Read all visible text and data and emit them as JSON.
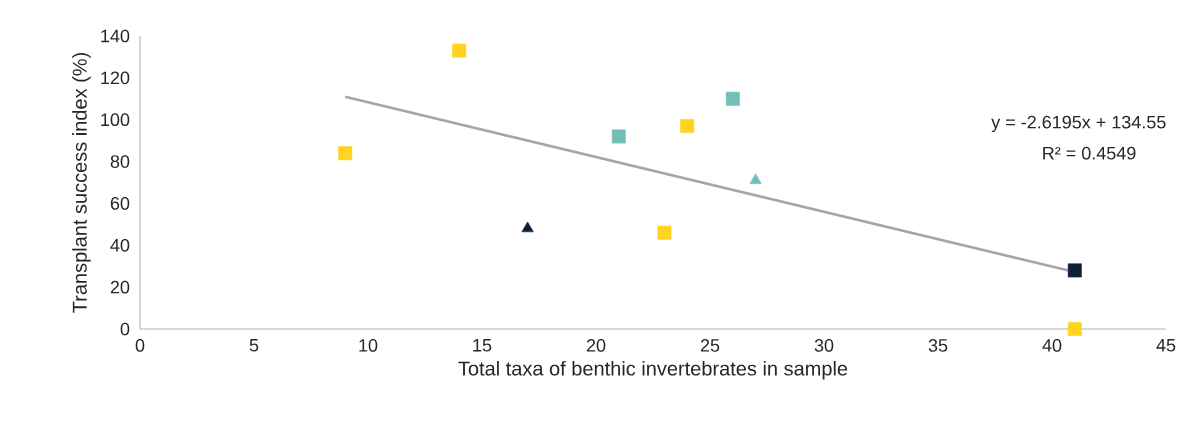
{
  "chart_data": {
    "type": "scatter",
    "xlabel": "Total taxa of benthic invertebrates in sample",
    "ylabel": "Transplant success index (%)",
    "xlim": [
      0,
      45
    ],
    "ylim": [
      0,
      140
    ],
    "xticks": [
      0,
      5,
      10,
      15,
      20,
      25,
      30,
      35,
      40,
      45
    ],
    "yticks": [
      0,
      20,
      40,
      60,
      80,
      100,
      120,
      140
    ],
    "grid": false,
    "series": [
      {
        "type": "line",
        "color": "#a6a6a6",
        "marker": "none",
        "x": [
          9,
          41
        ],
        "values": [
          111,
          27.2
        ]
      },
      {
        "color": "#ffd320",
        "marker": "square",
        "x": [
          9,
          14,
          23,
          24,
          41
        ],
        "values": [
          84,
          133,
          46,
          97,
          0
        ]
      },
      {
        "color": "#72bfb8",
        "marker": "square",
        "x": [
          21,
          26
        ],
        "values": [
          92,
          110
        ]
      },
      {
        "color": "#72bfb8",
        "marker": "triangle",
        "x": [
          27
        ],
        "values": [
          71
        ]
      },
      {
        "color": "#0f1f38",
        "marker": "triangle",
        "x": [
          17
        ],
        "values": [
          48
        ]
      },
      {
        "color": "#0f1f38",
        "marker": "square",
        "x": [
          41
        ],
        "values": [
          28
        ]
      }
    ],
    "annotations": [
      "y = -2.6195x + 134.55",
      "R² = 0.4549"
    ]
  }
}
